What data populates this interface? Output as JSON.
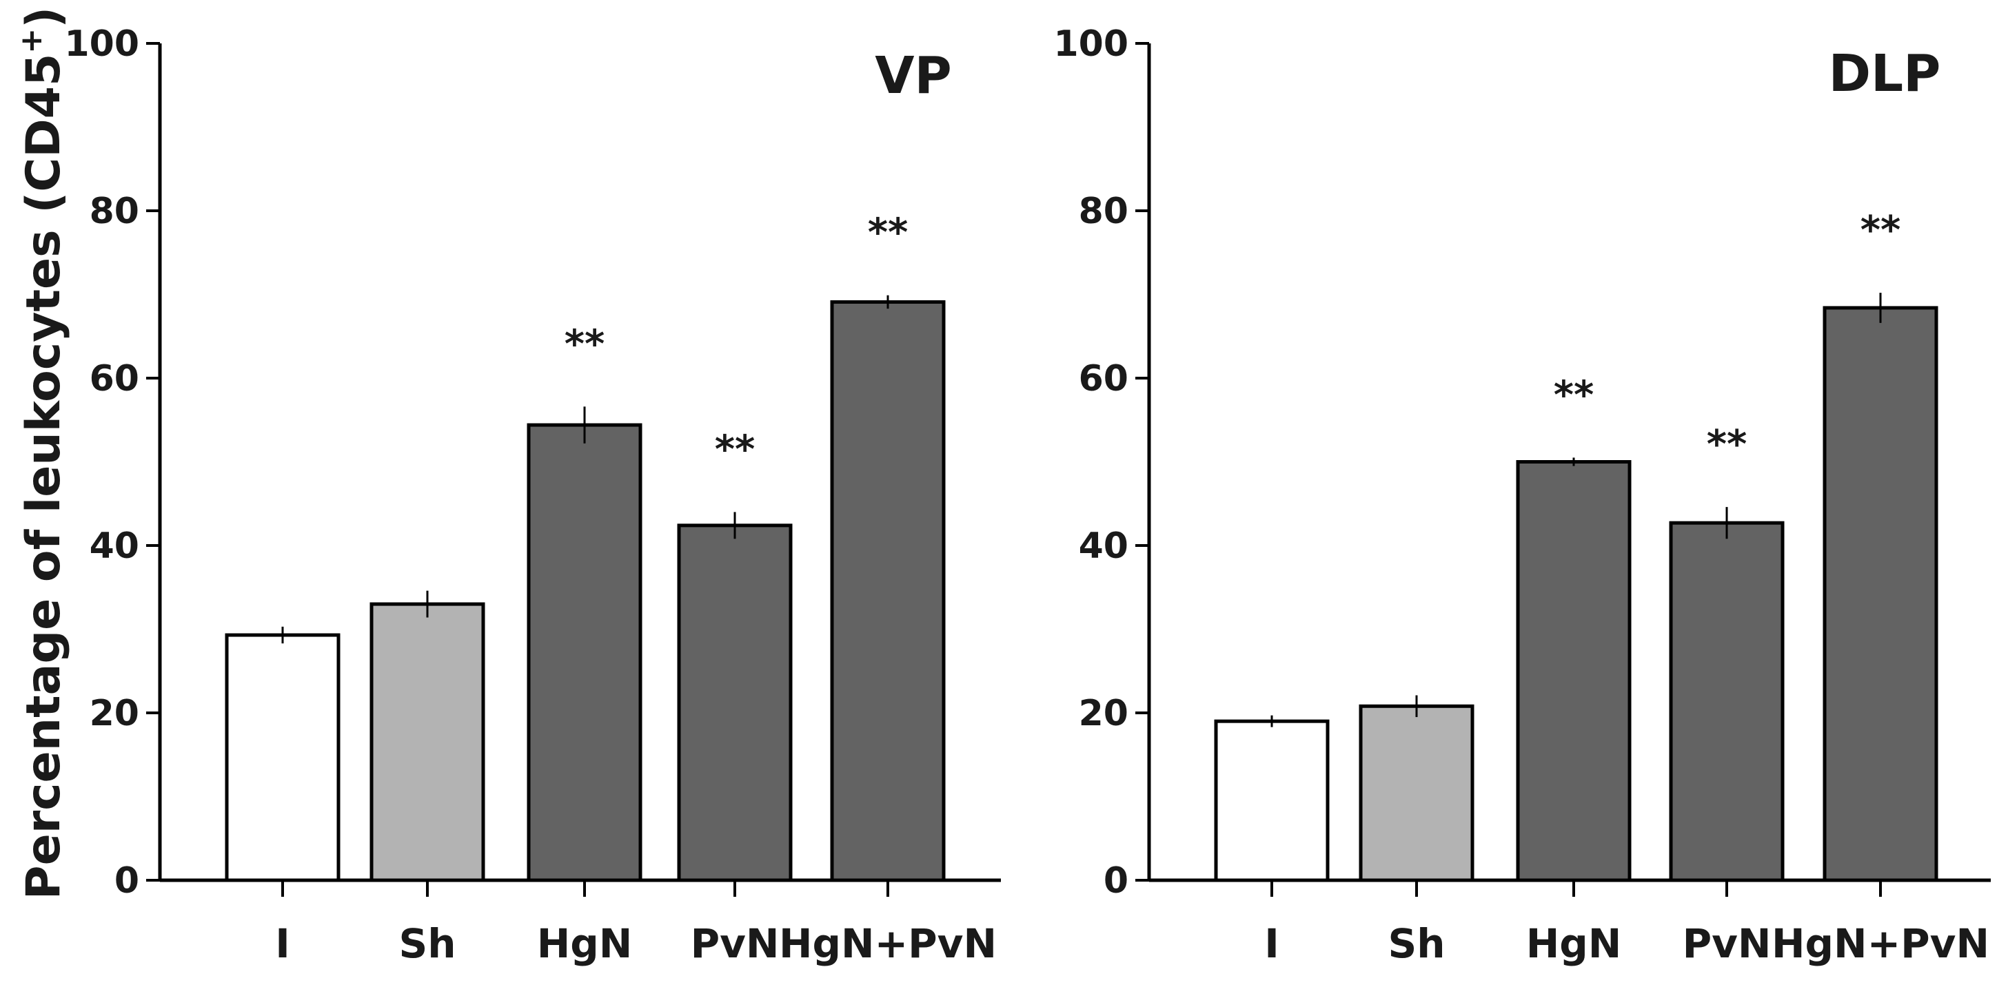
{
  "chart_data": [
    {
      "type": "bar",
      "title": "VP",
      "xlabel": "",
      "ylabel": "Percentage of leukocytes (CD45",
      "ylabel_sup": "+",
      "ylabel_close": ")",
      "ylim": [
        0,
        100
      ],
      "yticks": [
        0,
        20,
        40,
        60,
        80,
        100
      ],
      "categories": [
        "I",
        "Sh",
        "HgN",
        "PvN",
        "HgN+PvN"
      ],
      "values": [
        29.3,
        33.0,
        54.4,
        42.4,
        69.1
      ],
      "errors": [
        1.0,
        1.6,
        2.2,
        1.6,
        0.8
      ],
      "colors": [
        "#ffffff",
        "#b3b3b3",
        "#636363",
        "#636363",
        "#636363"
      ],
      "annotations": [
        "",
        "",
        "**",
        "**",
        "**"
      ]
    },
    {
      "type": "bar",
      "title": "DLP",
      "xlabel": "",
      "ylabel": "",
      "ylim": [
        0,
        100
      ],
      "yticks": [
        0,
        20,
        40,
        60,
        80,
        100
      ],
      "categories": [
        "I",
        "Sh",
        "HgN",
        "PvN",
        "HgN+PvN"
      ],
      "values": [
        19.0,
        20.8,
        50.0,
        42.7,
        68.4
      ],
      "errors": [
        0.7,
        1.3,
        0.5,
        1.9,
        1.8
      ],
      "colors": [
        "#ffffff",
        "#b3b3b3",
        "#636363",
        "#636363",
        "#636363"
      ],
      "annotations": [
        "",
        "",
        "**",
        "**",
        "**"
      ]
    }
  ]
}
